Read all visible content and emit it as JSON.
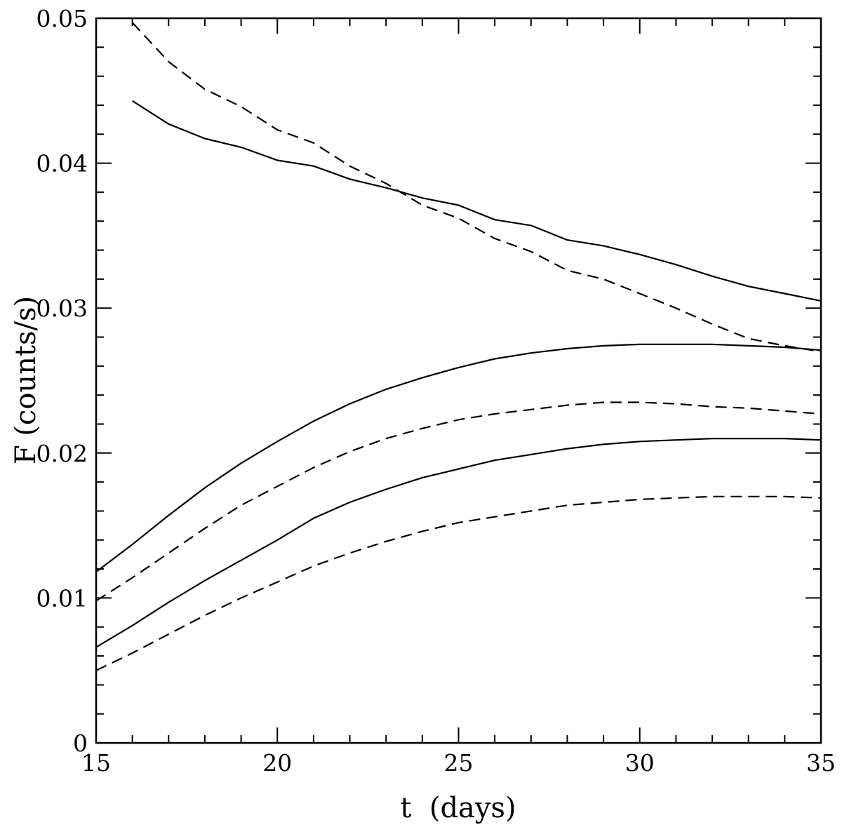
{
  "chart_data": {
    "type": "line",
    "title": "",
    "xlabel": "t  (days)",
    "ylabel": "F (counts/s)",
    "xlim": [
      15,
      35
    ],
    "ylim": [
      0,
      0.05
    ],
    "x_ticks": [
      15,
      20,
      25,
      30,
      35
    ],
    "x_tick_labels": [
      "15",
      "20",
      "25",
      "30",
      "35"
    ],
    "y_ticks": [
      0,
      0.01,
      0.02,
      0.03,
      0.04,
      0.05
    ],
    "y_tick_labels": [
      "0",
      "0.01",
      "0.02",
      "0.03",
      "0.04",
      "0.05"
    ],
    "grid": false,
    "legend": "none",
    "series": [
      {
        "style": "solid",
        "x": [
          16,
          17,
          18,
          19,
          20,
          21,
          22,
          23,
          24,
          25,
          26,
          27,
          28,
          29,
          30,
          31,
          32,
          33,
          34,
          35
        ],
        "values": [
          0.0443,
          0.0427,
          0.0417,
          0.0411,
          0.0402,
          0.0398,
          0.0389,
          0.0383,
          0.0376,
          0.0371,
          0.0361,
          0.0357,
          0.0347,
          0.0343,
          0.0337,
          0.033,
          0.0322,
          0.0315,
          0.031,
          0.0305
        ]
      },
      {
        "style": "dashed",
        "x": [
          16,
          17,
          18,
          19,
          20,
          21,
          22,
          23,
          24,
          25,
          26,
          27,
          28,
          29,
          30,
          31,
          32,
          33,
          34,
          35
        ],
        "values": [
          0.0497,
          0.047,
          0.0451,
          0.0439,
          0.0423,
          0.0414,
          0.0398,
          0.0386,
          0.0371,
          0.0362,
          0.0348,
          0.0339,
          0.0326,
          0.032,
          0.031,
          0.03,
          0.0289,
          0.0279,
          0.0274,
          0.027
        ]
      },
      {
        "style": "solid",
        "x": [
          15,
          16,
          17,
          18,
          19,
          20,
          21,
          22,
          23,
          24,
          25,
          26,
          27,
          28,
          29,
          30,
          31,
          32,
          33,
          34,
          35
        ],
        "values": [
          0.0118,
          0.0137,
          0.0157,
          0.0176,
          0.0193,
          0.0208,
          0.0222,
          0.0234,
          0.0244,
          0.0252,
          0.0259,
          0.0265,
          0.0269,
          0.0272,
          0.0274,
          0.0275,
          0.0275,
          0.0275,
          0.0274,
          0.0273,
          0.0271
        ]
      },
      {
        "style": "dashed",
        "x": [
          15,
          16,
          17,
          18,
          19,
          20,
          21,
          22,
          23,
          24,
          25,
          26,
          27,
          28,
          29,
          30,
          31,
          32,
          33,
          34,
          35
        ],
        "values": [
          0.0098,
          0.0114,
          0.0131,
          0.0148,
          0.0164,
          0.0177,
          0.019,
          0.0201,
          0.021,
          0.0217,
          0.0223,
          0.0227,
          0.023,
          0.0233,
          0.0235,
          0.0235,
          0.0234,
          0.0232,
          0.0231,
          0.0229,
          0.0227
        ]
      },
      {
        "style": "solid",
        "x": [
          15,
          16,
          17,
          18,
          19,
          20,
          21,
          22,
          23,
          24,
          25,
          26,
          27,
          28,
          29,
          30,
          31,
          32,
          33,
          34,
          35
        ],
        "values": [
          0.0066,
          0.0081,
          0.0097,
          0.0112,
          0.0126,
          0.014,
          0.0155,
          0.0166,
          0.0175,
          0.0183,
          0.0189,
          0.0195,
          0.0199,
          0.0203,
          0.0206,
          0.0208,
          0.0209,
          0.021,
          0.021,
          0.021,
          0.0209
        ]
      },
      {
        "style": "dashed",
        "x": [
          15,
          16,
          17,
          18,
          19,
          20,
          21,
          22,
          23,
          24,
          25,
          26,
          27,
          28,
          29,
          30,
          31,
          32,
          33,
          34,
          35
        ],
        "values": [
          0.005,
          0.0062,
          0.0075,
          0.0088,
          0.01,
          0.0111,
          0.0122,
          0.0131,
          0.0139,
          0.0146,
          0.0152,
          0.0156,
          0.016,
          0.0164,
          0.0166,
          0.0168,
          0.0169,
          0.017,
          0.017,
          0.017,
          0.0169
        ]
      }
    ]
  }
}
